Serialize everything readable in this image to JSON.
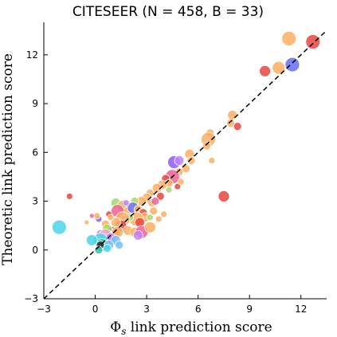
{
  "chart_data": {
    "type": "scatter",
    "title": "CITESEER (N = 458, B = 33)",
    "xlabel_symbol": "Φ",
    "xlabel_subscript": "s",
    "xlabel_rest": " link prediction score",
    "ylabel": "Theoretic link prediction score",
    "xlim": [
      -3,
      13.5
    ],
    "ylim": [
      -3,
      14
    ],
    "x_ticks": [
      -3,
      0,
      3,
      6,
      9,
      12
    ],
    "x_tick_labels": [
      "−3",
      "0",
      "3",
      "6",
      "9",
      "12"
    ],
    "y_ticks": [
      -3,
      0,
      3,
      6,
      9,
      12
    ],
    "y_tick_labels": [
      "−3",
      "0",
      "3",
      "6",
      "9",
      "12"
    ],
    "reference_line": {
      "style": "dashed",
      "slope": 1,
      "intercept": 0,
      "color": "#000000"
    },
    "grid": false,
    "legend": "none",
    "points": [
      {
        "x": 11.3,
        "y": 13.0,
        "size": 9,
        "color": "#fdae61"
      },
      {
        "x": 12.7,
        "y": 12.8,
        "size": 9,
        "color": "#e8463f"
      },
      {
        "x": 11.5,
        "y": 11.4,
        "size": 9,
        "color": "#6a6cf0"
      },
      {
        "x": 10.7,
        "y": 11.2,
        "size": 8,
        "color": "#fdae61"
      },
      {
        "x": 9.9,
        "y": 11.0,
        "size": 7,
        "color": "#e8463f"
      },
      {
        "x": 8.0,
        "y": 8.3,
        "size": 6,
        "color": "#fdae61"
      },
      {
        "x": 7.9,
        "y": 7.8,
        "size": 5,
        "color": "#fdae61"
      },
      {
        "x": 8.3,
        "y": 7.6,
        "size": 5,
        "color": "#e8463f"
      },
      {
        "x": 6.7,
        "y": 7.2,
        "size": 5,
        "color": "#fdae61"
      },
      {
        "x": 6.6,
        "y": 6.8,
        "size": 9,
        "color": "#fdae61"
      },
      {
        "x": 6.5,
        "y": 6.4,
        "size": 5,
        "color": "#fdae61"
      },
      {
        "x": 5.5,
        "y": 5.9,
        "size": 6,
        "color": "#fdae61"
      },
      {
        "x": 5.6,
        "y": 5.5,
        "size": 5,
        "color": "#fdae61"
      },
      {
        "x": 6.8,
        "y": 5.5,
        "size": 4,
        "color": "#fdae61"
      },
      {
        "x": 4.6,
        "y": 5.4,
        "size": 8,
        "color": "#8b5cf6"
      },
      {
        "x": 4.9,
        "y": 5.5,
        "size": 6,
        "color": "#c084fc"
      },
      {
        "x": 5.3,
        "y": 5.0,
        "size": 5,
        "color": "#fdae61"
      },
      {
        "x": 4.9,
        "y": 4.8,
        "size": 5,
        "color": "#fdae61"
      },
      {
        "x": 4.5,
        "y": 4.5,
        "size": 9,
        "color": "#f06292"
      },
      {
        "x": 4.1,
        "y": 4.4,
        "size": 5,
        "color": "#e8463f"
      },
      {
        "x": 4.3,
        "y": 4.1,
        "size": 5,
        "color": "#fdae61"
      },
      {
        "x": 3.9,
        "y": 4.0,
        "size": 6,
        "color": "#fdae61"
      },
      {
        "x": 3.6,
        "y": 3.8,
        "size": 6,
        "color": "#fdae61"
      },
      {
        "x": 3.2,
        "y": 3.5,
        "size": 5,
        "color": "#fdae61"
      },
      {
        "x": 3.8,
        "y": 3.3,
        "size": 5,
        "color": "#e8463f"
      },
      {
        "x": 4.8,
        "y": 3.9,
        "size": 4,
        "color": "#e8463f"
      },
      {
        "x": 5.0,
        "y": 4.2,
        "size": 4,
        "color": "#fdae61"
      },
      {
        "x": 4.3,
        "y": 3.7,
        "size": 4,
        "color": "#a6d96a"
      },
      {
        "x": 7.5,
        "y": 3.3,
        "size": 7,
        "color": "#e8463f"
      },
      {
        "x": -1.5,
        "y": 3.3,
        "size": 4,
        "color": "#e8463f"
      },
      {
        "x": 3.0,
        "y": 3.2,
        "size": 6,
        "color": "#fdae61"
      },
      {
        "x": 2.7,
        "y": 3.0,
        "size": 6,
        "color": "#fdae61"
      },
      {
        "x": 2.3,
        "y": 3.0,
        "size": 5,
        "color": "#a6d96a"
      },
      {
        "x": 1.2,
        "y": 2.9,
        "size": 6,
        "color": "#a6d96a"
      },
      {
        "x": 1.6,
        "y": 2.7,
        "size": 7,
        "color": "#fdae61"
      },
      {
        "x": 1.9,
        "y": 2.4,
        "size": 5,
        "color": "#fdae61"
      },
      {
        "x": 1.3,
        "y": 2.4,
        "size": 8,
        "color": "#f06292"
      },
      {
        "x": 2.2,
        "y": 2.6,
        "size": 7,
        "color": "#6a6cf0"
      },
      {
        "x": 2.5,
        "y": 2.5,
        "size": 5,
        "color": "#fdae61"
      },
      {
        "x": 2.8,
        "y": 2.3,
        "size": 5,
        "color": "#e8463f"
      },
      {
        "x": 3.3,
        "y": 2.9,
        "size": 5,
        "color": "#fdae61"
      },
      {
        "x": 2.9,
        "y": 2.0,
        "size": 6,
        "color": "#fdae61"
      },
      {
        "x": 3.4,
        "y": 2.4,
        "size": 5,
        "color": "#fdae61"
      },
      {
        "x": 2.4,
        "y": 1.9,
        "size": 9,
        "color": "#fdae61"
      },
      {
        "x": 2.6,
        "y": 1.7,
        "size": 6,
        "color": "#e8463f"
      },
      {
        "x": 2.0,
        "y": 2.0,
        "size": 5,
        "color": "#a6d96a"
      },
      {
        "x": 1.6,
        "y": 1.9,
        "size": 9,
        "color": "#fdae61"
      },
      {
        "x": 1.5,
        "y": 1.5,
        "size": 7,
        "color": "#e8463f"
      },
      {
        "x": 1.2,
        "y": 1.7,
        "size": 6,
        "color": "#fdae61"
      },
      {
        "x": 0.8,
        "y": 2.2,
        "size": 4,
        "color": "#e8463f"
      },
      {
        "x": 1.0,
        "y": 1.0,
        "size": 9,
        "color": "#e8463f"
      },
      {
        "x": 1.3,
        "y": 1.1,
        "size": 7,
        "color": "#fdae61"
      },
      {
        "x": 1.9,
        "y": 1.2,
        "size": 6,
        "color": "#fdae61"
      },
      {
        "x": 2.3,
        "y": 1.1,
        "size": 6,
        "color": "#fdae61"
      },
      {
        "x": 2.7,
        "y": 1.1,
        "size": 8,
        "color": "#f06292"
      },
      {
        "x": 3.2,
        "y": 1.4,
        "size": 7,
        "color": "#fdae61"
      },
      {
        "x": 2.5,
        "y": 0.9,
        "size": 6,
        "color": "#c084fc"
      },
      {
        "x": 0.6,
        "y": 1.6,
        "size": 5,
        "color": "#fdae61"
      },
      {
        "x": 0.2,
        "y": 1.9,
        "size": 4,
        "color": "#8b5cf6"
      },
      {
        "x": 0.1,
        "y": 2.1,
        "size": 4,
        "color": "#fdae61"
      },
      {
        "x": -0.5,
        "y": 1.7,
        "size": 3,
        "color": "#fdae61"
      },
      {
        "x": -0.2,
        "y": 2.1,
        "size": 3,
        "color": "#f06292"
      },
      {
        "x": 0.7,
        "y": 1.3,
        "size": 6,
        "color": "#a6d96a"
      },
      {
        "x": 0.3,
        "y": 1.0,
        "size": 5,
        "color": "#c084fc"
      },
      {
        "x": 0.6,
        "y": 0.9,
        "size": 8,
        "color": "#f4a6c8"
      },
      {
        "x": 0.9,
        "y": 0.7,
        "size": 7,
        "color": "#c084fc"
      },
      {
        "x": 1.2,
        "y": 0.6,
        "size": 6,
        "color": "#74c0fc"
      },
      {
        "x": 0.3,
        "y": 0.6,
        "size": 9,
        "color": "#4dd4e8"
      },
      {
        "x": 0.4,
        "y": 0.3,
        "size": 8,
        "color": "#2ec4a8"
      },
      {
        "x": 0.3,
        "y": 0.3,
        "size": 5,
        "color": "#2b2b2b"
      },
      {
        "x": -0.2,
        "y": 0.6,
        "size": 7,
        "color": "#4dd4e8"
      },
      {
        "x": 0.8,
        "y": 0.3,
        "size": 6,
        "color": "#74c0fc"
      },
      {
        "x": 0.7,
        "y": 0.1,
        "size": 5,
        "color": "#4dd4e8"
      },
      {
        "x": 0.2,
        "y": 0.0,
        "size": 5,
        "color": "#2ec4a8"
      },
      {
        "x": 1.4,
        "y": 0.3,
        "size": 5,
        "color": "#74c0fc"
      },
      {
        "x": -2.1,
        "y": 1.4,
        "size": 9,
        "color": "#4dd4e8"
      },
      {
        "x": 3.2,
        "y": 2.0,
        "size": 4,
        "color": "#a6d96a"
      },
      {
        "x": 3.7,
        "y": 1.9,
        "size": 4,
        "color": "#fdae61"
      },
      {
        "x": 4.0,
        "y": 2.2,
        "size": 4,
        "color": "#fdae61"
      },
      {
        "x": 3.5,
        "y": 3.0,
        "size": 5,
        "color": "#f06292"
      },
      {
        "x": 1.8,
        "y": 2.9,
        "size": 4,
        "color": "#c084fc"
      },
      {
        "x": 0.9,
        "y": 2.0,
        "size": 4,
        "color": "#fdae61"
      }
    ]
  }
}
